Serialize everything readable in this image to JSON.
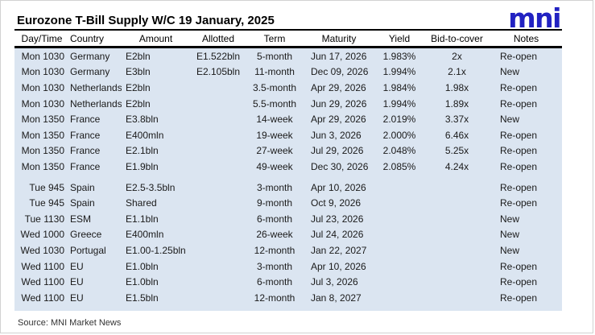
{
  "title": "Eurozone T-Bill Supply W/C 19 January, 2025",
  "logo": {
    "text": "mni",
    "color": "#2222c2"
  },
  "source": "Source: MNI Market News",
  "colors": {
    "row_background": "#dbe5f1",
    "rule": "#000000",
    "logo_blue": "#2222c2"
  },
  "table": {
    "columns": [
      {
        "key": "day_time",
        "label": "Day/Time"
      },
      {
        "key": "country",
        "label": "Country"
      },
      {
        "key": "amount",
        "label": "Amount"
      },
      {
        "key": "allotted",
        "label": "Allotted"
      },
      {
        "key": "term",
        "label": "Term"
      },
      {
        "key": "maturity",
        "label": "Maturity"
      },
      {
        "key": "yield",
        "label": "Yield"
      },
      {
        "key": "bid_to_cover",
        "label": "Bid-to-cover"
      },
      {
        "key": "notes",
        "label": "Notes"
      }
    ],
    "rows": [
      {
        "day_time": "Mon 1030",
        "country": "Germany",
        "amount": "E2bln",
        "allotted": "E1.522bln",
        "term": "5-month",
        "maturity": "Jun 17, 2026",
        "yield": "1.983%",
        "bid_to_cover": "2x",
        "notes": "Re-open",
        "group_gap": false
      },
      {
        "day_time": "Mon 1030",
        "country": "Germany",
        "amount": "E3bln",
        "allotted": "E2.105bln",
        "term": "11-month",
        "maturity": "Dec 09, 2026",
        "yield": "1.994%",
        "bid_to_cover": "2.1x",
        "notes": "New",
        "group_gap": false
      },
      {
        "day_time": "Mon 1030",
        "country": "Netherlands",
        "amount": "E2bln",
        "allotted": "",
        "term": "3.5-month",
        "maturity": "Apr 29, 2026",
        "yield": "1.984%",
        "bid_to_cover": "1.98x",
        "notes": "Re-open",
        "group_gap": false
      },
      {
        "day_time": "Mon 1030",
        "country": "Netherlands",
        "amount": "E2bln",
        "allotted": "",
        "term": "5.5-month",
        "maturity": "Jun 29, 2026",
        "yield": "1.994%",
        "bid_to_cover": "1.89x",
        "notes": "Re-open",
        "group_gap": false
      },
      {
        "day_time": "Mon 1350",
        "country": "France",
        "amount": "E3.8bln",
        "allotted": "",
        "term": "14-week",
        "maturity": "Apr 29, 2026",
        "yield": "2.019%",
        "bid_to_cover": "3.37x",
        "notes": "New",
        "group_gap": false
      },
      {
        "day_time": "Mon 1350",
        "country": "France",
        "amount": "E400mln",
        "allotted": "",
        "term": "19-week",
        "maturity": "Jun 3, 2026",
        "yield": "2.000%",
        "bid_to_cover": "6.46x",
        "notes": "Re-open",
        "group_gap": false
      },
      {
        "day_time": "Mon 1350",
        "country": "France",
        "amount": "E2.1bln",
        "allotted": "",
        "term": "27-week",
        "maturity": "Jul 29, 2026",
        "yield": "2.048%",
        "bid_to_cover": "5.25x",
        "notes": "Re-open",
        "group_gap": false
      },
      {
        "day_time": "Mon 1350",
        "country": "France",
        "amount": "E1.9bln",
        "allotted": "",
        "term": "49-week",
        "maturity": "Dec 30, 2026",
        "yield": "2.085%",
        "bid_to_cover": "4.24x",
        "notes": "Re-open",
        "group_gap": false
      },
      {
        "day_time": "Tue 945",
        "country": "Spain",
        "amount": "E2.5-3.5bln",
        "allotted": "",
        "term": "3-month",
        "maturity": "Apr 10, 2026",
        "yield": "",
        "bid_to_cover": "",
        "notes": "Re-open",
        "group_gap": true
      },
      {
        "day_time": "Tue 945",
        "country": "Spain",
        "amount": "Shared",
        "allotted": "",
        "term": "9-month",
        "maturity": "Oct 9, 2026",
        "yield": "",
        "bid_to_cover": "",
        "notes": "Re-open",
        "group_gap": false
      },
      {
        "day_time": "Tue 1130",
        "country": "ESM",
        "amount": "E1.1bln",
        "allotted": "",
        "term": "6-month",
        "maturity": "Jul 23, 2026",
        "yield": "",
        "bid_to_cover": "",
        "notes": "New",
        "group_gap": false
      },
      {
        "day_time": "Wed 1000",
        "country": "Greece",
        "amount": "E400mln",
        "allotted": "",
        "term": "26-week",
        "maturity": "Jul 24, 2026",
        "yield": "",
        "bid_to_cover": "",
        "notes": "New",
        "group_gap": false
      },
      {
        "day_time": "Wed 1030",
        "country": "Portugal",
        "amount": "E1.00-1.25bln",
        "allotted": "",
        "term": "12-month",
        "maturity": "Jan 22, 2027",
        "yield": "",
        "bid_to_cover": "",
        "notes": "New",
        "group_gap": false
      },
      {
        "day_time": "Wed 1100",
        "country": "EU",
        "amount": "E1.0bln",
        "allotted": "",
        "term": "3-month",
        "maturity": "Apr 10, 2026",
        "yield": "",
        "bid_to_cover": "",
        "notes": "Re-open",
        "group_gap": false
      },
      {
        "day_time": "Wed 1100",
        "country": "EU",
        "amount": "E1.0bln",
        "allotted": "",
        "term": "6-month",
        "maturity": "Jul 3, 2026",
        "yield": "",
        "bid_to_cover": "",
        "notes": "Re-open",
        "group_gap": false
      },
      {
        "day_time": "Wed 1100",
        "country": "EU",
        "amount": "E1.5bln",
        "allotted": "",
        "term": "12-month",
        "maturity": "Jan 8, 2027",
        "yield": "",
        "bid_to_cover": "",
        "notes": "Re-open",
        "group_gap": false
      }
    ]
  }
}
